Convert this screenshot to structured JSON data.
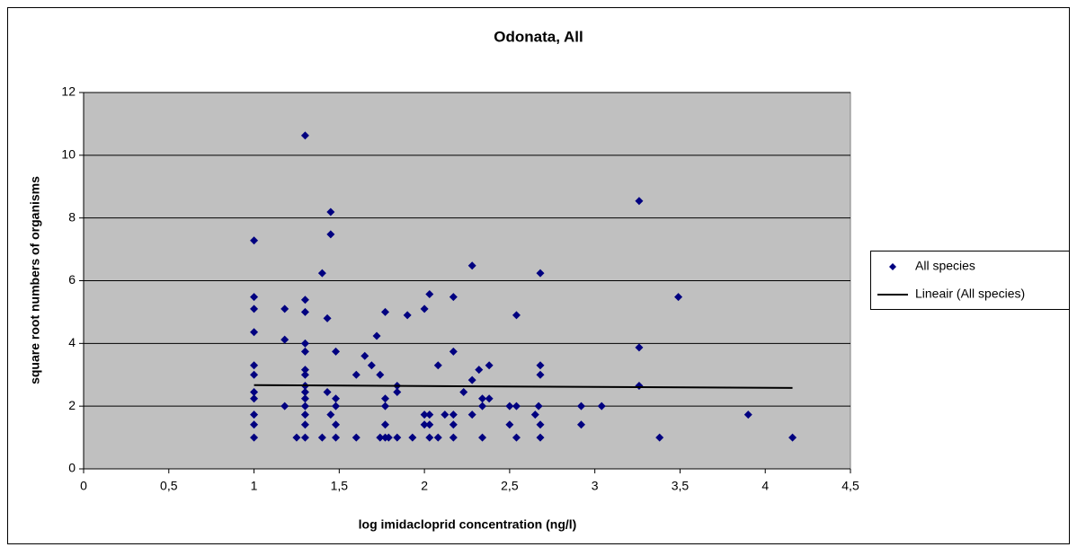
{
  "chart_data": {
    "type": "scatter",
    "title": "Odonata, All",
    "xlabel": "log imidacloprid concentration (ng/l)",
    "ylabel": "square root numbers of organisms",
    "xlim": [
      0,
      4.5
    ],
    "ylim": [
      0,
      12
    ],
    "xticks": [
      0,
      {
        "value": 0.5,
        "label": "0,5"
      },
      1,
      {
        "value": 1.5,
        "label": "1,5"
      },
      2,
      {
        "value": 2.5,
        "label": "2,5"
      },
      3,
      {
        "value": 3.5,
        "label": "3,5"
      },
      4,
      {
        "value": 4.5,
        "label": "4,5"
      }
    ],
    "yticks": [
      0,
      2,
      4,
      6,
      8,
      10,
      12
    ],
    "grid": true,
    "legend": "right",
    "series": [
      {
        "name": "All species",
        "color": "#000080",
        "mode": "markers",
        "x": [
          1,
          1,
          1,
          1,
          1,
          1,
          1,
          1,
          1,
          1,
          1,
          1.18,
          1.18,
          1.18,
          1.25,
          1.3,
          1.3,
          1.3,
          1.3,
          1.3,
          1.3,
          1.3,
          1.3,
          1.3,
          1.3,
          1.3,
          1.3,
          1.3,
          1.3,
          1.4,
          1.4,
          1.43,
          1.43,
          1.45,
          1.45,
          1.45,
          1.48,
          1.48,
          1.48,
          1.48,
          1.48,
          1.6,
          1.6,
          1.65,
          1.69,
          1.72,
          1.74,
          1.74,
          1.77,
          1.77,
          1.77,
          1.77,
          1.77,
          1.79,
          1.84,
          1.84,
          1.84,
          1.9,
          1.93,
          2.0,
          2.0,
          2.0,
          2.03,
          2.03,
          2.03,
          2.03,
          2.08,
          2.08,
          2.12,
          2.17,
          2.17,
          2.17,
          2.17,
          2.17,
          2.23,
          2.28,
          2.28,
          2.28,
          2.32,
          2.34,
          2.34,
          2.34,
          2.38,
          2.38,
          2.5,
          2.5,
          2.54,
          2.54,
          2.54,
          2.65,
          2.67,
          2.68,
          2.68,
          2.68,
          2.68,
          2.68,
          2.92,
          2.92,
          3.04,
          3.26,
          3.26,
          3.26,
          3.38,
          3.49,
          3.9,
          4.16
        ],
        "values": [
          7.28,
          5.48,
          5.1,
          4.36,
          3.3,
          3.0,
          2.45,
          2.24,
          1.73,
          1.41,
          1.0,
          5.1,
          4.12,
          2.0,
          1.0,
          10.63,
          5.39,
          5.0,
          4.0,
          3.74,
          3.16,
          3.0,
          2.65,
          2.45,
          2.24,
          2.0,
          1.73,
          1.41,
          1.0,
          6.24,
          1.0,
          4.8,
          2.45,
          8.19,
          7.48,
          1.73,
          3.74,
          2.24,
          2.0,
          1.41,
          1.0,
          3.0,
          1.0,
          3.6,
          3.3,
          4.24,
          3.0,
          1.0,
          5.0,
          2.24,
          2.0,
          1.41,
          1.0,
          1.0,
          2.65,
          2.45,
          1.0,
          4.9,
          1.0,
          5.1,
          1.73,
          1.41,
          5.57,
          1.73,
          1.41,
          1.0,
          3.3,
          1.0,
          1.73,
          5.48,
          3.74,
          1.73,
          1.41,
          1.0,
          2.45,
          6.48,
          2.83,
          1.73,
          3.16,
          2.24,
          2.0,
          1.0,
          3.3,
          2.24,
          2.0,
          1.41,
          4.9,
          2.0,
          1.0,
          1.73,
          2.0,
          6.24,
          3.3,
          3.0,
          1.41,
          1.0,
          2.0,
          1.41,
          2.0,
          8.54,
          3.87,
          2.65,
          1.0,
          5.48,
          1.73,
          1.0
        ]
      },
      {
        "name": "Lineair (All species)",
        "color": "#000000",
        "mode": "line",
        "x": [
          1,
          4.16
        ],
        "values": [
          2.67,
          2.58
        ]
      }
    ]
  }
}
